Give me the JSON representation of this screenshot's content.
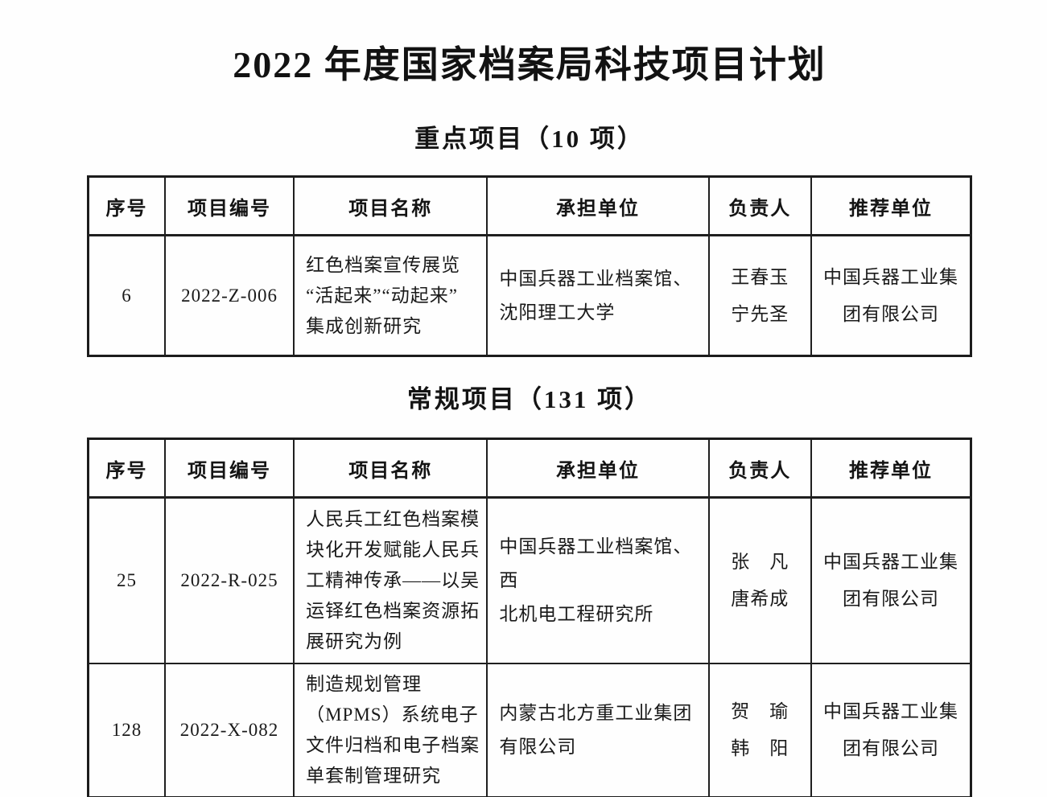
{
  "page": {
    "title": "2022 年度国家档案局科技项目计划"
  },
  "columns": [
    "序号",
    "项目编号",
    "项目名称",
    "承担单位",
    "负责人",
    "推荐单位"
  ],
  "sections": [
    {
      "heading": "重点项目（10 项）",
      "rows": [
        {
          "serial": "6",
          "code": "2022-Z-006",
          "name_lines": [
            "红色档案宣传展览",
            "“活起来”“动起来”",
            "集成创新研究"
          ],
          "unit_lines": [
            "中国兵器工业档案馆、",
            "沈阳理工大学"
          ],
          "leader_lines": [
            "王春玉",
            "宁先圣"
          ],
          "recommend_lines": [
            "中国兵器工业集",
            "团有限公司"
          ]
        }
      ]
    },
    {
      "heading": "常规项目（131 项）",
      "rows": [
        {
          "serial": "25",
          "code": "2022-R-025",
          "name_lines": [
            "人民兵工红色档案模",
            "块化开发赋能人民兵",
            "工精神传承——以吴",
            "运铎红色档案资源拓",
            "展研究为例"
          ],
          "unit_lines": [
            "中国兵器工业档案馆、西",
            "北机电工程研究所"
          ],
          "leader_lines": [
            "张　凡",
            "唐希成"
          ],
          "recommend_lines": [
            "中国兵器工业集",
            "团有限公司"
          ]
        },
        {
          "serial": "128",
          "code": "2022-X-082",
          "name_lines": [
            "制造规划管理",
            "（MPMS）系统电子",
            "文件归档和电子档案",
            "单套制管理研究"
          ],
          "unit_lines": [
            "内蒙古北方重工业集团",
            "有限公司"
          ],
          "leader_lines": [
            "贺　瑜",
            "韩　阳"
          ],
          "recommend_lines": [
            "中国兵器工业集",
            "团有限公司"
          ]
        }
      ]
    }
  ]
}
